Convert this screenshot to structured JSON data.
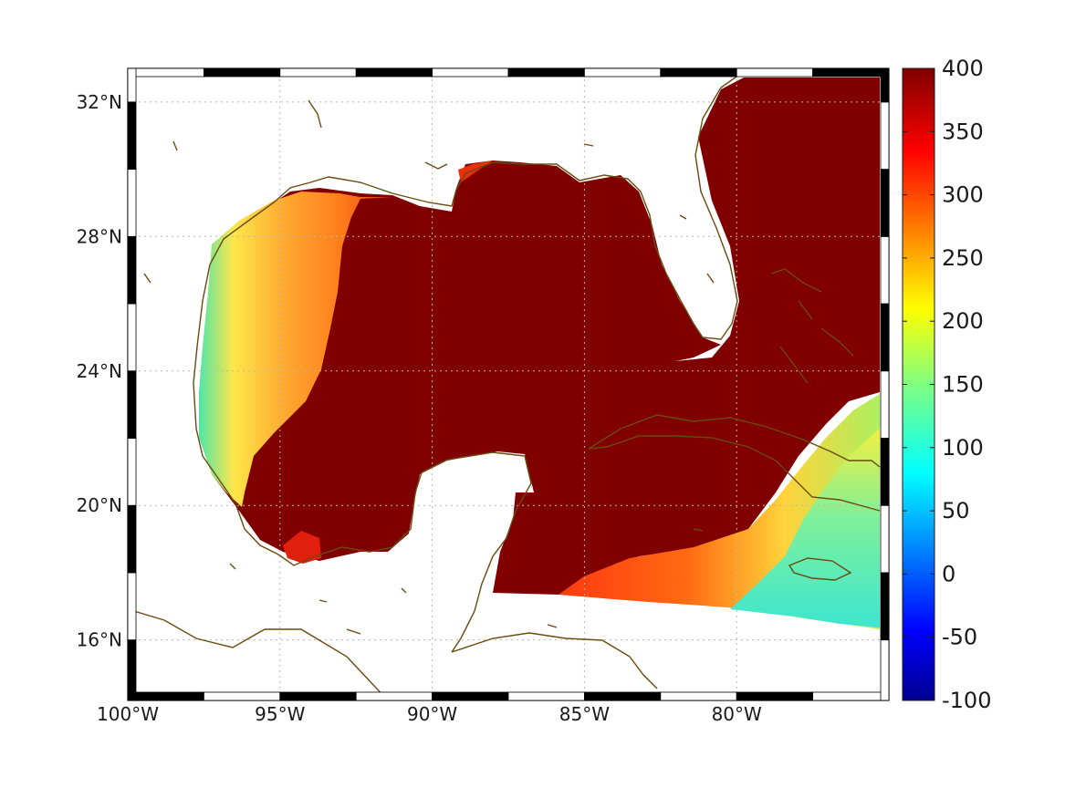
{
  "map": {
    "region": "Gulf of Mexico and northwestern Caribbean",
    "projection": "geographic",
    "lon_range": [
      -100,
      -75
    ],
    "lat_range": [
      14.2,
      33
    ],
    "lon_ticks": [
      {
        "value": -100,
        "label": "100°W"
      },
      {
        "value": -95,
        "label": "95°W"
      },
      {
        "value": -90,
        "label": "90°W"
      },
      {
        "value": -85,
        "label": "85°W"
      },
      {
        "value": -80,
        "label": "80°W"
      }
    ],
    "lat_ticks": [
      {
        "value": 32,
        "label": "32°N"
      },
      {
        "value": 28,
        "label": "28°N"
      },
      {
        "value": 24,
        "label": "24°N"
      },
      {
        "value": 20,
        "label": "20°N"
      },
      {
        "value": 16,
        "label": "16°N"
      }
    ],
    "grid": true,
    "frame": "alternating black-white border",
    "field_description": "colored scalar field over ocean; values exceed 400 in the deep Gulf and Caribbean interior, lower (about 100–300) on the western Gulf shelf and south of Cuba near Jamaica",
    "coastline_color": "#6b4a0e"
  },
  "colorbar": {
    "colormap": "jet",
    "min": -100,
    "max": 400,
    "ticks": [
      {
        "value": 400,
        "label": "400"
      },
      {
        "value": 350,
        "label": "350"
      },
      {
        "value": 300,
        "label": "300"
      },
      {
        "value": 250,
        "label": "250"
      },
      {
        "value": 200,
        "label": "200"
      },
      {
        "value": 150,
        "label": "150"
      },
      {
        "value": 100,
        "label": "100"
      },
      {
        "value": 50,
        "label": "50"
      },
      {
        "value": 0,
        "label": "0"
      },
      {
        "value": -50,
        "label": "-50"
      },
      {
        "value": -100,
        "label": "-100"
      }
    ],
    "colors": [
      "#00008f",
      "#0000ff",
      "#0080ff",
      "#00ffff",
      "#80ff80",
      "#ffff00",
      "#ff8000",
      "#ff0000",
      "#800000"
    ]
  }
}
